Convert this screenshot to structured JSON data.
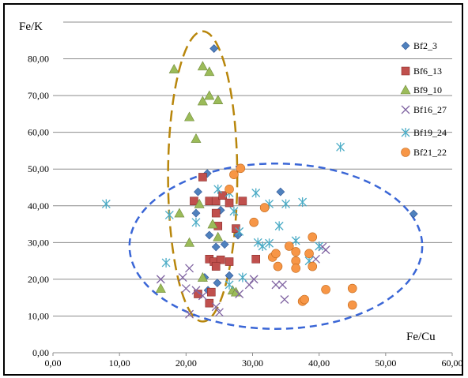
{
  "chart_data": {
    "type": "scatter",
    "xlabel": "Fe/Cu",
    "ylabel": "Fe/K",
    "xlim": [
      0,
      60
    ],
    "ylim": [
      0,
      90
    ],
    "x_ticks": [
      "0,00",
      "10,00",
      "20,00",
      "30,00",
      "40,00",
      "50,00",
      "60,00"
    ],
    "y_ticks": [
      "0,00",
      "10,00",
      "20,00",
      "30,00",
      "40,00",
      "50,00",
      "60,00",
      "70,00",
      "80,00"
    ],
    "grid": "horizontal",
    "legend_position": "right",
    "series": [
      {
        "name": "Bf2_3",
        "marker": "diamond",
        "color": "#4f81bd",
        "points": [
          [
            24.2,
            82.8
          ],
          [
            21.8,
            43.8
          ],
          [
            23.2,
            48.8
          ],
          [
            25.2,
            38.8
          ],
          [
            21.5,
            38.0
          ],
          [
            23.5,
            32.0
          ],
          [
            24.5,
            28.8
          ],
          [
            25.8,
            29.5
          ],
          [
            22.8,
            20.5
          ],
          [
            26.5,
            21.0
          ],
          [
            27.8,
            32.0
          ],
          [
            34.2,
            43.8
          ],
          [
            54.2,
            37.8
          ],
          [
            23.3,
            17.0
          ],
          [
            24.7,
            19.0
          ]
        ]
      },
      {
        "name": "Bf6_13",
        "marker": "square",
        "color": "#c0504d",
        "points": [
          [
            22.5,
            47.8
          ],
          [
            21.2,
            41.3
          ],
          [
            23.5,
            41.3
          ],
          [
            24.5,
            41.3
          ],
          [
            25.5,
            42.8
          ],
          [
            26.5,
            40.8
          ],
          [
            28.5,
            41.3
          ],
          [
            24.5,
            38.0
          ],
          [
            24.8,
            34.5
          ],
          [
            27.5,
            33.8
          ],
          [
            23.5,
            25.5
          ],
          [
            24.2,
            24.8
          ],
          [
            25.2,
            25.3
          ],
          [
            26.5,
            24.8
          ],
          [
            24.5,
            23.5
          ],
          [
            30.5,
            25.5
          ],
          [
            21.8,
            16.0
          ],
          [
            23.8,
            16.5
          ],
          [
            23.5,
            13.5
          ]
        ]
      },
      {
        "name": "Bf9_10",
        "marker": "triangle",
        "color": "#9bbb59",
        "points": [
          [
            18.2,
            77.2
          ],
          [
            22.5,
            78.0
          ],
          [
            23.5,
            76.5
          ],
          [
            23.5,
            70.0
          ],
          [
            22.5,
            68.5
          ],
          [
            24.8,
            68.8
          ],
          [
            20.5,
            64.2
          ],
          [
            21.5,
            58.3
          ],
          [
            22.0,
            40.5
          ],
          [
            19.0,
            38.0
          ],
          [
            24.0,
            35.0
          ],
          [
            24.8,
            31.5
          ],
          [
            20.5,
            30.0
          ],
          [
            16.2,
            17.5
          ],
          [
            22.5,
            20.5
          ],
          [
            27.0,
            17.0
          ],
          [
            27.5,
            16.5
          ]
        ]
      },
      {
        "name": "Bf16_27",
        "marker": "x",
        "color": "#8064a2",
        "points": [
          [
            16.2,
            20.0
          ],
          [
            20.5,
            23.0
          ],
          [
            19.5,
            20.5
          ],
          [
            20.0,
            17.5
          ],
          [
            20.5,
            10.5
          ],
          [
            21.5,
            17.0
          ],
          [
            22.5,
            15.5
          ],
          [
            24.5,
            12.5
          ],
          [
            25.0,
            11.0
          ],
          [
            29.5,
            18.5
          ],
          [
            30.2,
            20.0
          ],
          [
            33.5,
            18.5
          ],
          [
            34.5,
            18.5
          ],
          [
            34.8,
            14.5
          ],
          [
            39.5,
            25.5
          ],
          [
            40.5,
            28.8
          ],
          [
            41.0,
            28.0
          ],
          [
            28.0,
            16.0
          ]
        ]
      },
      {
        "name": "Bf19_24",
        "marker": "asterisk",
        "color": "#4bacc6",
        "points": [
          [
            8.0,
            40.5
          ],
          [
            17.5,
            37.5
          ],
          [
            21.5,
            35.5
          ],
          [
            24.8,
            44.5
          ],
          [
            26.5,
            43.5
          ],
          [
            27.2,
            38.5
          ],
          [
            30.5,
            43.5
          ],
          [
            32.5,
            40.5
          ],
          [
            35.0,
            40.5
          ],
          [
            37.5,
            41.0
          ],
          [
            43.2,
            56.0
          ],
          [
            17.0,
            24.5
          ],
          [
            28.0,
            33.0
          ],
          [
            30.8,
            30.0
          ],
          [
            31.5,
            29.0
          ],
          [
            32.5,
            29.8
          ],
          [
            34.0,
            34.5
          ],
          [
            36.5,
            30.5
          ],
          [
            38.5,
            25.0
          ],
          [
            40.0,
            29.0
          ],
          [
            28.5,
            20.5
          ],
          [
            26.5,
            18.5
          ]
        ]
      },
      {
        "name": "Bf21_22",
        "marker": "circle",
        "color": "#f79646",
        "points": [
          [
            26.5,
            44.5
          ],
          [
            27.2,
            48.5
          ],
          [
            28.2,
            50.2
          ],
          [
            30.2,
            35.5
          ],
          [
            31.8,
            39.5
          ],
          [
            33.0,
            26.0
          ],
          [
            33.5,
            27.0
          ],
          [
            33.8,
            23.5
          ],
          [
            35.5,
            29.0
          ],
          [
            36.5,
            27.5
          ],
          [
            36.5,
            25.0
          ],
          [
            36.5,
            23.0
          ],
          [
            38.5,
            27.0
          ],
          [
            39.0,
            31.5
          ],
          [
            39.0,
            23.5
          ],
          [
            37.5,
            14.0
          ],
          [
            37.8,
            14.5
          ],
          [
            41.0,
            17.2
          ],
          [
            45.0,
            17.5
          ],
          [
            45.0,
            13.0
          ]
        ]
      }
    ],
    "annotations": [
      {
        "shape": "ellipse",
        "style": "dashed",
        "color": "#b8860b",
        "center": [
          22.5,
          48.0
        ],
        "radius_x": 5.2,
        "radius_y": 39.5
      },
      {
        "shape": "ellipse",
        "style": "dashed",
        "color": "#3a66d6",
        "center": [
          33.5,
          29.0
        ],
        "radius_x": 22.0,
        "radius_y": 22.5
      }
    ]
  }
}
